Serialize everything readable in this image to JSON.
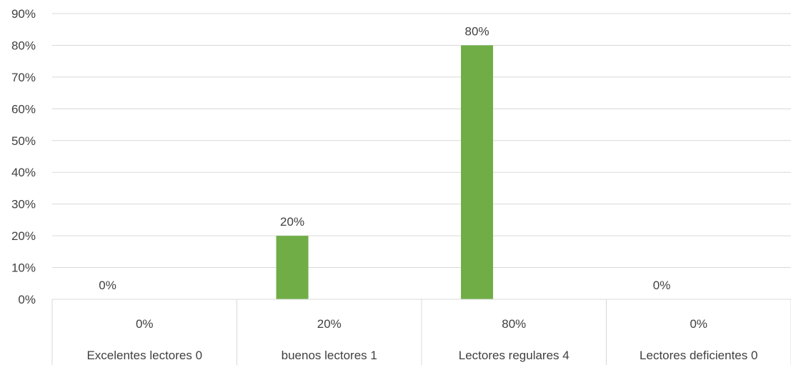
{
  "chart_data": {
    "type": "bar",
    "categories": [
      "Excelentes lectores 0",
      "buenos lectores 1",
      "Lectores regulares 4",
      "Lectores deficientes 0"
    ],
    "series": [
      {
        "values": [
          0,
          20,
          80,
          0
        ]
      }
    ],
    "data_labels": [
      "0%",
      "20%",
      "80%",
      "0%"
    ],
    "table_row": [
      "0%",
      "20%",
      "80%",
      "0%"
    ],
    "y_ticks": [
      "0%",
      "10%",
      "20%",
      "30%",
      "40%",
      "50%",
      "60%",
      "70%",
      "80%",
      "90%"
    ],
    "ylim": [
      0,
      90
    ],
    "y_unit": "%",
    "grid": true,
    "bar_color": "#70ad47",
    "title": "",
    "xlabel": "",
    "ylabel": ""
  }
}
